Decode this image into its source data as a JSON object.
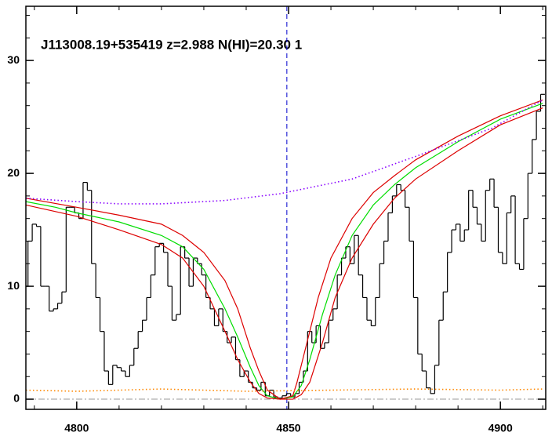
{
  "chart_data": {
    "type": "line",
    "title": "J113008.19+535419 z=2.988 N(HI)=20.30 1",
    "xlim": [
      4788,
      4910.7
    ],
    "ylim": [
      -0.9,
      34.8
    ],
    "xticks": [
      4800,
      4850,
      4900
    ],
    "yticks": [
      0,
      10,
      20,
      30
    ],
    "vline": 4849.6,
    "hline": 0,
    "series": [
      {
        "name": "flux",
        "style": "step",
        "color": "#000000",
        "x": [
          4788,
          4789,
          4790,
          4791,
          4792,
          4793,
          4794,
          4795,
          4796,
          4797,
          4798,
          4799,
          4800,
          4801,
          4802,
          4803,
          4804,
          4805,
          4806,
          4807,
          4808,
          4809,
          4810,
          4811,
          4812,
          4813,
          4814,
          4815,
          4816,
          4817,
          4818,
          4819,
          4820,
          4821,
          4822,
          4823,
          4824,
          4825,
          4826,
          4827,
          4828,
          4829,
          4830,
          4831,
          4832,
          4833,
          4834,
          4835,
          4836,
          4837,
          4838,
          4839,
          4840,
          4841,
          4842,
          4843,
          4844,
          4845,
          4846,
          4847,
          4848,
          4849,
          4850,
          4851,
          4852,
          4853,
          4854,
          4855,
          4856,
          4857,
          4858,
          4859,
          4860,
          4861,
          4862,
          4863,
          4864,
          4865,
          4866,
          4867,
          4868,
          4869,
          4870,
          4871,
          4872,
          4873,
          4874,
          4875,
          4876,
          4877,
          4878,
          4879,
          4880,
          4881,
          4882,
          4883,
          4884,
          4885,
          4886,
          4887,
          4888,
          4889,
          4890,
          4891,
          4892,
          4893,
          4894,
          4895,
          4896,
          4897,
          4898,
          4899,
          4900,
          4901,
          4902,
          4903,
          4904,
          4905,
          4906,
          4907,
          4908,
          4909,
          4910
        ],
        "values": [
          10,
          14,
          15.5,
          15.3,
          10,
          10,
          7.8,
          8,
          8.5,
          9.5,
          17,
          17,
          16.5,
          16,
          19.2,
          18.5,
          12,
          9,
          6,
          2.5,
          1.3,
          3,
          2.8,
          2.5,
          2,
          3,
          4.5,
          6,
          7,
          9,
          11,
          13.5,
          13.8,
          13,
          10,
          7,
          7.5,
          13.5,
          12.5,
          10,
          12.5,
          12,
          11,
          9,
          8,
          6.5,
          8,
          6,
          5,
          5.5,
          3.5,
          2,
          2.5,
          1.5,
          1,
          0.8,
          1.5,
          0.3,
          0.8,
          0.2,
          0.1,
          0.3,
          0.5,
          0.2,
          0.5,
          1.5,
          2.5,
          6,
          5,
          6.5,
          4.5,
          5,
          7,
          8,
          11,
          12.5,
          13.5,
          12,
          14.5,
          11,
          9,
          7,
          6.5,
          9,
          12,
          14,
          16.5,
          18,
          19,
          18.5,
          17,
          14,
          9,
          4,
          2.5,
          1,
          0.5,
          3,
          7,
          9.5,
          13,
          15,
          15.5,
          14,
          15,
          18.5,
          17,
          15.5,
          14,
          18.5,
          19.5,
          17,
          13,
          12,
          16.5,
          18,
          12,
          11.5,
          16,
          20,
          23,
          25.5,
          27
        ]
      },
      {
        "name": "fit",
        "style": "solid",
        "color": "#00dd00",
        "x": [
          4788,
          4795,
          4800,
          4810,
          4820,
          4825,
          4830,
          4835,
          4838,
          4841,
          4843,
          4845,
          4848,
          4851,
          4853,
          4855,
          4858,
          4861,
          4865,
          4870,
          4875,
          4880,
          4890,
          4900,
          4910
        ],
        "values": [
          17.5,
          17,
          16.5,
          15.7,
          14.5,
          13.5,
          11.5,
          8,
          5.5,
          2.8,
          1.2,
          0.3,
          0,
          0.2,
          1.2,
          3.5,
          7.5,
          11,
          14.5,
          17.2,
          19,
          20.5,
          22.8,
          24.8,
          26.2
        ]
      },
      {
        "name": "fit-upper",
        "style": "solid",
        "color": "#dd0000",
        "x": [
          4788,
          4800,
          4810,
          4820,
          4825,
          4830,
          4835,
          4838,
          4841,
          4843,
          4845,
          4848,
          4851,
          4852,
          4854,
          4857,
          4860,
          4865,
          4870,
          4875,
          4880,
          4890,
          4900,
          4910
        ],
        "values": [
          17.8,
          17,
          16.3,
          15.5,
          14.5,
          13,
          10.5,
          8,
          4.5,
          2.5,
          0.8,
          0,
          0.3,
          1.5,
          4.5,
          9,
          12.5,
          16,
          18.3,
          19.8,
          21.2,
          23.3,
          25.1,
          26.5
        ]
      },
      {
        "name": "fit-lower",
        "style": "solid",
        "color": "#dd0000",
        "x": [
          4788,
          4800,
          4810,
          4820,
          4825,
          4830,
          4835,
          4838,
          4841,
          4843,
          4845,
          4848,
          4851,
          4853,
          4855,
          4858,
          4861,
          4865,
          4870,
          4875,
          4880,
          4890,
          4900,
          4910
        ],
        "values": [
          17.2,
          16.2,
          15,
          13.7,
          12.5,
          10,
          6,
          3.5,
          1.5,
          0.5,
          0.1,
          0,
          0,
          0.4,
          1.5,
          5,
          9,
          12.5,
          15.5,
          17.8,
          19.5,
          22,
          24.3,
          25.8
        ]
      },
      {
        "name": "continuum",
        "style": "dotted",
        "color": "#8800ff",
        "x": [
          4788,
          4800,
          4810,
          4820,
          4835,
          4848,
          4865,
          4880,
          4898,
          4910
        ],
        "values": [
          17.8,
          17.5,
          17.3,
          17.3,
          17.6,
          18.2,
          19.5,
          21.5,
          24,
          26.5
        ]
      },
      {
        "name": "error",
        "style": "dotted",
        "color": "#ff8800",
        "x": [
          4788,
          4800,
          4820,
          4840,
          4860,
          4880,
          4900,
          4910
        ],
        "values": [
          0.8,
          0.7,
          0.9,
          0.7,
          0.8,
          0.9,
          0.8,
          0.9
        ]
      }
    ]
  }
}
